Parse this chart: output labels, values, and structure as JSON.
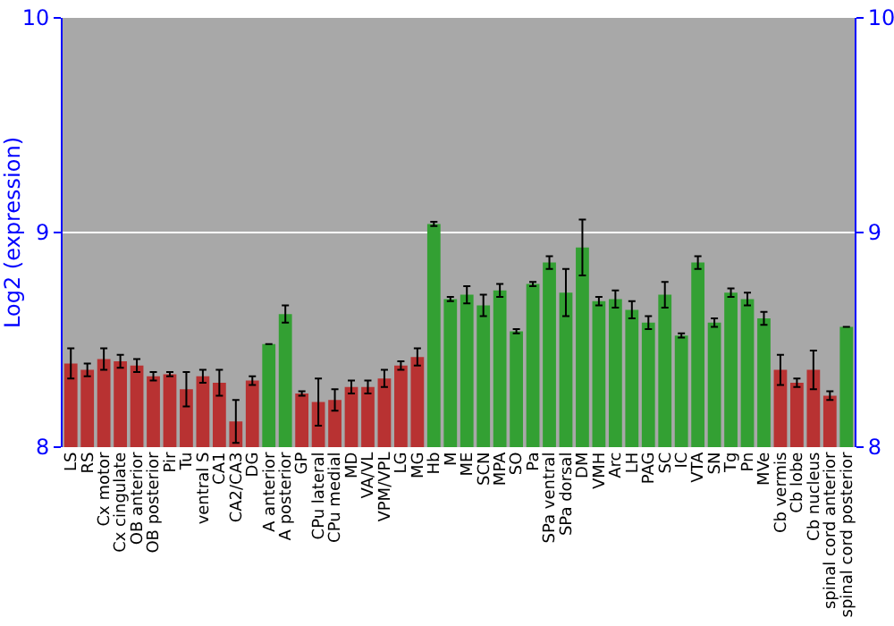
{
  "chart_data": {
    "type": "bar",
    "ylabel": "Log2 (expression)",
    "categories": [
      "LS",
      "RS",
      "Cx motor",
      "Cx cingulate",
      "OB anterior",
      "OB posterior",
      "Pir",
      "Tu",
      "ventral S",
      "CA1",
      "CA2/CA3",
      "DG",
      "A anterior",
      "A posterior",
      "GP",
      "CPu lateral",
      "CPu medial",
      "MD",
      "VA/VL",
      "VPM/VPL",
      "LG",
      "MG",
      "Hb",
      "M",
      "ME",
      "SCN",
      "MPA",
      "SO",
      "Pa",
      "SPa ventral",
      "SPa dorsal",
      "DM",
      "VMH",
      "Arc",
      "LH",
      "PAG",
      "SC",
      "IC",
      "VTA",
      "SN",
      "Tg",
      "Pn",
      "MVe",
      "Cb vermis",
      "Cb lobe",
      "Cb nucleus",
      "spinal cord anterior",
      "spinal cord posterior"
    ],
    "values": [
      8.39,
      8.36,
      8.41,
      8.4,
      8.38,
      8.33,
      8.34,
      8.27,
      8.33,
      8.3,
      8.12,
      8.31,
      8.48,
      8.62,
      8.25,
      8.21,
      8.22,
      8.28,
      8.28,
      8.32,
      8.38,
      8.42,
      9.04,
      8.69,
      8.71,
      8.66,
      8.73,
      8.54,
      8.76,
      8.86,
      8.72,
      8.93,
      8.68,
      8.69,
      8.64,
      8.58,
      8.71,
      8.52,
      8.86,
      8.58,
      8.72,
      8.69,
      8.6,
      8.36,
      8.3,
      8.36,
      8.24,
      8.56
    ],
    "errors": [
      0.07,
      0.03,
      0.05,
      0.03,
      0.03,
      0.02,
      0.01,
      0.08,
      0.03,
      0.06,
      0.1,
      0.02,
      0,
      0.04,
      0.01,
      0.11,
      0.05,
      0.03,
      0.03,
      0.04,
      0.02,
      0.04,
      0.01,
      0.01,
      0.04,
      0.05,
      0.03,
      0.01,
      0.01,
      0.03,
      0.11,
      0.13,
      0.02,
      0.04,
      0.04,
      0.03,
      0.06,
      0.01,
      0.03,
      0.02,
      0.02,
      0.03,
      0.03,
      0.07,
      0.02,
      0.09,
      0.02,
      0
    ],
    "colors": [
      "#b83232",
      "#b83232",
      "#b83232",
      "#b83232",
      "#b83232",
      "#b83232",
      "#b83232",
      "#b83232",
      "#b83232",
      "#b83232",
      "#b83232",
      "#b83232",
      "#33a033",
      "#33a033",
      "#b83232",
      "#b83232",
      "#b83232",
      "#b83232",
      "#b83232",
      "#b83232",
      "#b83232",
      "#b83232",
      "#33a033",
      "#33a033",
      "#33a033",
      "#33a033",
      "#33a033",
      "#33a033",
      "#33a033",
      "#33a033",
      "#33a033",
      "#33a033",
      "#33a033",
      "#33a033",
      "#33a033",
      "#33a033",
      "#33a033",
      "#33a033",
      "#33a033",
      "#33a033",
      "#33a033",
      "#33a033",
      "#33a033",
      "#b83232",
      "#b83232",
      "#b83232",
      "#b83232",
      "#33a033"
    ],
    "ylim": [
      8,
      10
    ],
    "yticks": [
      8,
      9,
      10
    ],
    "y2lim": [
      8,
      10
    ],
    "y2ticks": [
      8,
      9,
      10
    ],
    "grid": "y"
  }
}
